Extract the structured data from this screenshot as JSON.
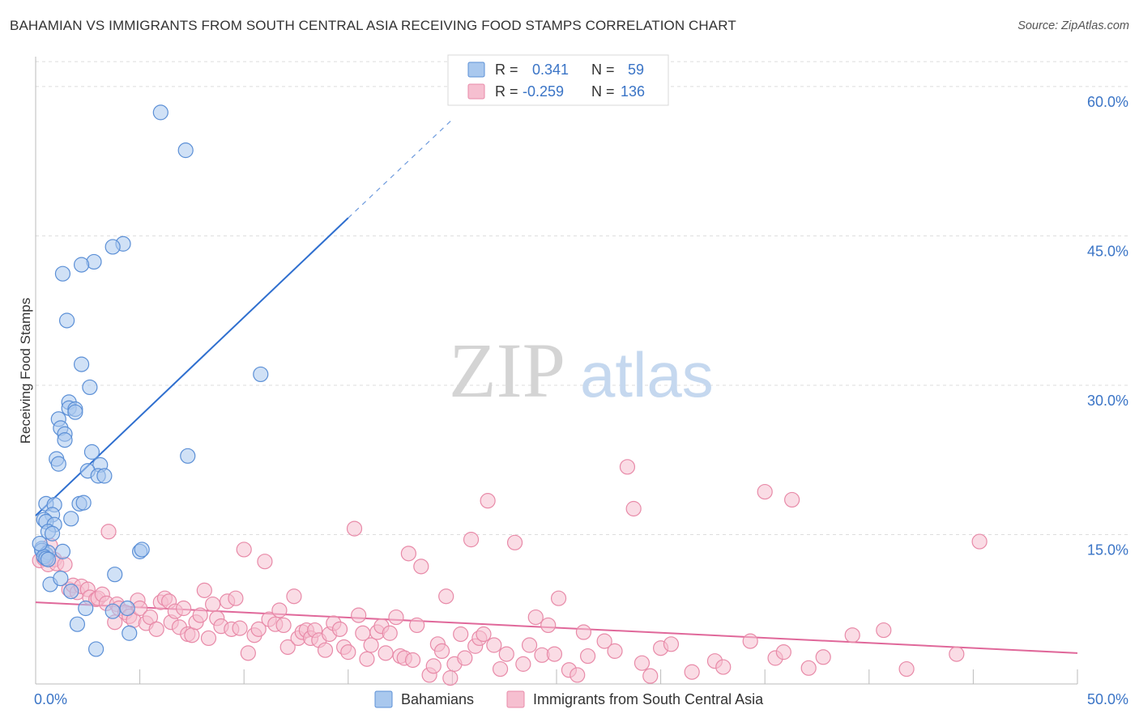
{
  "header": {
    "title": "BAHAMIAN VS IMMIGRANTS FROM SOUTH CENTRAL ASIA RECEIVING FOOD STAMPS CORRELATION CHART",
    "source": "Source: ZipAtlas.com"
  },
  "watermark": {
    "zip": "ZIP",
    "atlas": "atlas"
  },
  "legend_top": {
    "rows": [
      {
        "r_label": "R =",
        "r_value": "0.341",
        "n_label": "N =",
        "n_value": "59"
      },
      {
        "r_label": "R =",
        "r_value": "-0.259",
        "n_label": "N =",
        "n_value": "136"
      }
    ]
  },
  "legend_bottom": {
    "items": [
      "Bahamians",
      "Immigrants from South Central Asia"
    ]
  },
  "colors": {
    "blue_fill": "#a9c8ee",
    "blue_stroke": "#5b8fd6",
    "blue_line": "#2f6fcf",
    "pink_fill": "#f6bfd0",
    "pink_stroke": "#e88aa8",
    "pink_line": "#e0689a",
    "tick_text": "#3a74c6",
    "grid": "#dddddd"
  },
  "chart_data": {
    "type": "scatter",
    "title": "BAHAMIAN VS IMMIGRANTS FROM SOUTH CENTRAL ASIA RECEIVING FOOD STAMPS CORRELATION CHART",
    "xlabel": "",
    "ylabel": "Receiving Food Stamps",
    "xlim": [
      0,
      50
    ],
    "ylim": [
      0,
      63
    ],
    "x_tick_labels": [
      "0.0%",
      "50.0%"
    ],
    "y_ticks": [
      15,
      30,
      45,
      60
    ],
    "y_tick_labels": [
      "15.0%",
      "30.0%",
      "45.0%",
      "60.0%"
    ],
    "grid": true,
    "legend_position": "top-center",
    "series": [
      {
        "name": "Bahamians",
        "r": 0.341,
        "n": 59,
        "trend": {
          "x0": 0.0,
          "y0": 16.9,
          "x1": 15.0,
          "y1": 46.8,
          "dash_to_x": 20.0,
          "dash_to_y": 56.7
        },
        "points": [
          [
            6.0,
            57.4
          ],
          [
            7.2,
            53.6
          ],
          [
            4.2,
            44.2
          ],
          [
            3.7,
            43.9
          ],
          [
            2.8,
            42.4
          ],
          [
            2.2,
            42.1
          ],
          [
            1.3,
            41.2
          ],
          [
            1.5,
            36.5
          ],
          [
            2.2,
            32.1
          ],
          [
            10.8,
            31.1
          ],
          [
            2.6,
            29.8
          ],
          [
            1.6,
            28.3
          ],
          [
            1.6,
            27.7
          ],
          [
            1.9,
            27.6
          ],
          [
            1.9,
            27.3
          ],
          [
            1.1,
            26.6
          ],
          [
            1.2,
            25.7
          ],
          [
            1.4,
            25.1
          ],
          [
            1.4,
            24.5
          ],
          [
            2.7,
            23.3
          ],
          [
            7.3,
            22.9
          ],
          [
            1.0,
            22.6
          ],
          [
            1.1,
            22.1
          ],
          [
            3.1,
            22.0
          ],
          [
            2.5,
            21.4
          ],
          [
            3.0,
            20.9
          ],
          [
            3.3,
            20.9
          ],
          [
            0.5,
            18.1
          ],
          [
            0.9,
            18.0
          ],
          [
            2.1,
            18.1
          ],
          [
            2.3,
            18.2
          ],
          [
            0.8,
            17.0
          ],
          [
            0.4,
            16.5
          ],
          [
            0.5,
            16.3
          ],
          [
            0.9,
            16.0
          ],
          [
            1.7,
            16.6
          ],
          [
            0.6,
            15.3
          ],
          [
            0.8,
            15.1
          ],
          [
            0.3,
            13.6
          ],
          [
            0.3,
            13.4
          ],
          [
            0.5,
            13.0
          ],
          [
            0.6,
            13.2
          ],
          [
            0.4,
            12.8
          ],
          [
            0.5,
            12.6
          ],
          [
            0.6,
            12.5
          ],
          [
            1.3,
            13.3
          ],
          [
            5.0,
            13.3
          ],
          [
            5.1,
            13.5
          ],
          [
            0.7,
            10.0
          ],
          [
            1.2,
            10.6
          ],
          [
            3.8,
            11.0
          ],
          [
            1.7,
            9.3
          ],
          [
            2.4,
            7.6
          ],
          [
            3.7,
            7.3
          ],
          [
            4.4,
            7.6
          ],
          [
            2.0,
            6.0
          ],
          [
            4.5,
            5.1
          ],
          [
            2.9,
            3.5
          ],
          [
            0.2,
            14.1
          ]
        ]
      },
      {
        "name": "Immigrants from South Central Asia",
        "r": -0.259,
        "n": 136,
        "trend": {
          "x0": 0.0,
          "y0": 8.2,
          "x1": 50.0,
          "y1": 3.1
        },
        "points": [
          [
            0.2,
            12.4
          ],
          [
            0.4,
            12.6
          ],
          [
            0.6,
            12.0
          ],
          [
            0.7,
            13.9
          ],
          [
            0.9,
            12.5
          ],
          [
            1.0,
            12.1
          ],
          [
            1.4,
            12.0
          ],
          [
            1.6,
            9.5
          ],
          [
            1.8,
            9.9
          ],
          [
            2.0,
            9.2
          ],
          [
            2.2,
            9.8
          ],
          [
            2.5,
            9.5
          ],
          [
            2.6,
            8.7
          ],
          [
            2.9,
            8.5
          ],
          [
            3.0,
            8.6
          ],
          [
            3.2,
            9.0
          ],
          [
            3.4,
            8.1
          ],
          [
            3.5,
            15.3
          ],
          [
            3.8,
            6.2
          ],
          [
            3.9,
            8.0
          ],
          [
            4.0,
            7.6
          ],
          [
            4.3,
            7.2
          ],
          [
            4.5,
            6.8
          ],
          [
            4.7,
            6.4
          ],
          [
            4.9,
            8.4
          ],
          [
            5.0,
            7.6
          ],
          [
            5.3,
            6.1
          ],
          [
            5.5,
            6.7
          ],
          [
            5.8,
            5.5
          ],
          [
            6.0,
            8.2
          ],
          [
            6.2,
            8.6
          ],
          [
            6.4,
            8.3
          ],
          [
            6.5,
            6.2
          ],
          [
            6.7,
            7.3
          ],
          [
            6.9,
            5.7
          ],
          [
            7.1,
            7.6
          ],
          [
            7.3,
            5.0
          ],
          [
            7.5,
            4.9
          ],
          [
            7.7,
            6.2
          ],
          [
            7.9,
            6.9
          ],
          [
            8.1,
            9.4
          ],
          [
            8.3,
            4.6
          ],
          [
            8.5,
            8.0
          ],
          [
            8.7,
            6.6
          ],
          [
            8.9,
            5.8
          ],
          [
            9.2,
            8.3
          ],
          [
            9.4,
            5.5
          ],
          [
            9.6,
            8.6
          ],
          [
            9.8,
            5.6
          ],
          [
            10.0,
            13.5
          ],
          [
            10.2,
            3.1
          ],
          [
            10.5,
            4.9
          ],
          [
            10.7,
            5.5
          ],
          [
            11.0,
            12.3
          ],
          [
            11.2,
            6.5
          ],
          [
            11.5,
            6.0
          ],
          [
            11.7,
            7.4
          ],
          [
            11.9,
            5.9
          ],
          [
            12.1,
            3.7
          ],
          [
            12.4,
            8.8
          ],
          [
            12.6,
            4.6
          ],
          [
            12.8,
            5.2
          ],
          [
            13.0,
            5.4
          ],
          [
            13.2,
            4.6
          ],
          [
            13.4,
            5.4
          ],
          [
            13.6,
            4.4
          ],
          [
            13.9,
            3.4
          ],
          [
            14.1,
            5.0
          ],
          [
            14.3,
            6.1
          ],
          [
            14.6,
            5.5
          ],
          [
            14.8,
            3.7
          ],
          [
            15.0,
            3.2
          ],
          [
            15.3,
            15.6
          ],
          [
            15.5,
            6.9
          ],
          [
            15.7,
            5.1
          ],
          [
            15.9,
            2.5
          ],
          [
            16.1,
            3.9
          ],
          [
            16.4,
            5.2
          ],
          [
            16.6,
            5.8
          ],
          [
            16.8,
            3.1
          ],
          [
            17.0,
            5.1
          ],
          [
            17.3,
            6.7
          ],
          [
            17.5,
            2.8
          ],
          [
            17.7,
            2.6
          ],
          [
            17.9,
            13.1
          ],
          [
            18.1,
            2.4
          ],
          [
            18.3,
            5.9
          ],
          [
            18.5,
            11.8
          ],
          [
            18.9,
            0.9
          ],
          [
            19.1,
            1.8
          ],
          [
            19.3,
            4.0
          ],
          [
            19.5,
            3.3
          ],
          [
            19.7,
            8.8
          ],
          [
            19.9,
            0.6
          ],
          [
            20.1,
            2.0
          ],
          [
            20.4,
            5.0
          ],
          [
            20.6,
            2.6
          ],
          [
            20.9,
            14.5
          ],
          [
            21.1,
            3.8
          ],
          [
            21.3,
            4.6
          ],
          [
            21.5,
            5.0
          ],
          [
            21.7,
            18.4
          ],
          [
            22.0,
            3.9
          ],
          [
            22.3,
            1.5
          ],
          [
            22.6,
            3.0
          ],
          [
            23.0,
            14.2
          ],
          [
            23.4,
            2.0
          ],
          [
            23.7,
            3.9
          ],
          [
            24.0,
            6.7
          ],
          [
            24.3,
            2.9
          ],
          [
            24.6,
            5.9
          ],
          [
            24.9,
            3.0
          ],
          [
            25.1,
            8.6
          ],
          [
            25.6,
            1.4
          ],
          [
            26.0,
            0.9
          ],
          [
            26.3,
            5.2
          ],
          [
            26.5,
            2.8
          ],
          [
            27.3,
            4.3
          ],
          [
            27.8,
            3.3
          ],
          [
            28.4,
            21.8
          ],
          [
            28.7,
            17.6
          ],
          [
            29.1,
            2.1
          ],
          [
            29.5,
            0.8
          ],
          [
            30.0,
            3.6
          ],
          [
            30.5,
            4.0
          ],
          [
            31.5,
            1.2
          ],
          [
            32.6,
            2.3
          ],
          [
            33.0,
            1.7
          ],
          [
            34.3,
            4.3
          ],
          [
            35.0,
            19.3
          ],
          [
            35.5,
            2.6
          ],
          [
            35.9,
            3.2
          ],
          [
            36.3,
            18.5
          ],
          [
            37.1,
            1.6
          ],
          [
            37.8,
            2.7
          ],
          [
            39.2,
            4.9
          ],
          [
            40.7,
            5.4
          ],
          [
            41.8,
            1.5
          ],
          [
            44.2,
            3.0
          ],
          [
            45.3,
            14.3
          ]
        ]
      }
    ]
  }
}
